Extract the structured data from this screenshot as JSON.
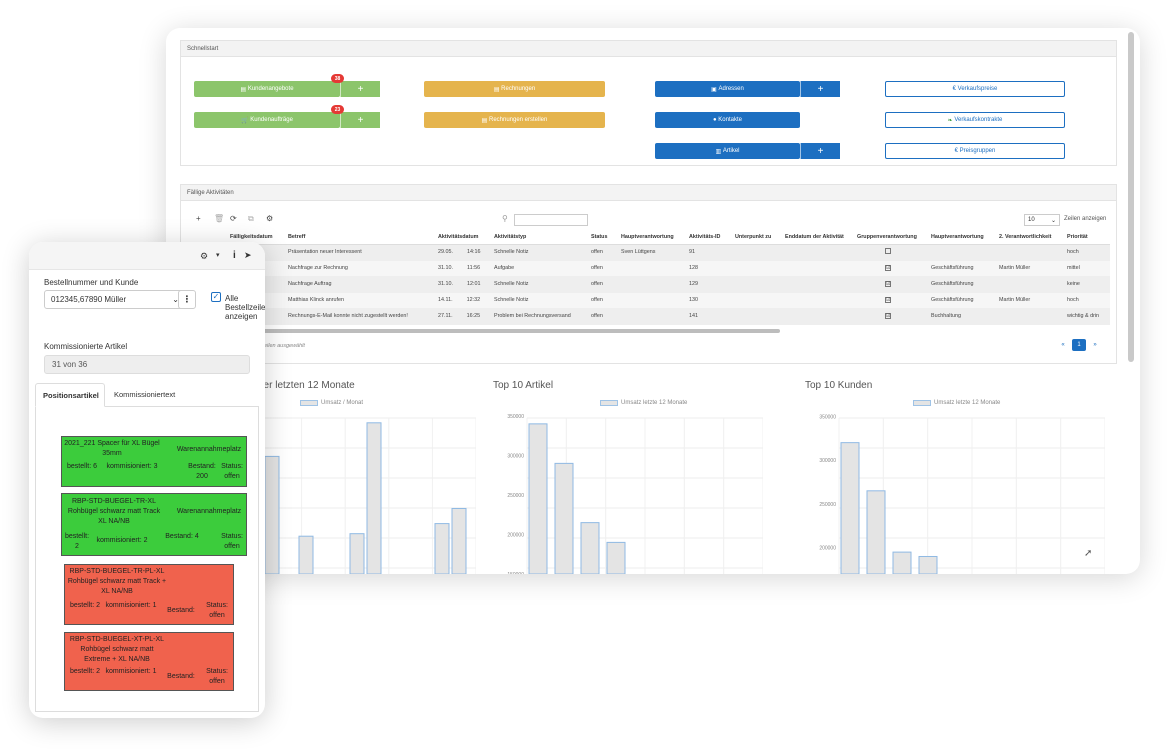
{
  "quick": {
    "title": "Schnellstart",
    "btn_kunden_angebote": "Kundenangebote",
    "badge_angebote": "38",
    "btn_kunden_auftraege": "Kundenaufträge",
    "badge_auftraege": "23",
    "btn_rechnungen": "Rechnungen",
    "btn_rechnungen_erstellen": "Rechnungen erstellen",
    "btn_adressen": "Adressen",
    "btn_kontakte": "Kontakte",
    "btn_artikel": "Artikel",
    "btn_verkaufspreise": "Verkaufspreise",
    "btn_verkaufskontrakte": "Verkaufskontrakte",
    "btn_preisgruppen": "Preisgruppen",
    "plus": "+"
  },
  "activities": {
    "title": "Fällige Aktivitäten",
    "rows_select": "10",
    "rows_label": "Zeilen anzeigen",
    "columns": [
      "Fälligkeitsdatum",
      "Betreff",
      "Aktivitätsdatum",
      "Aktivitätstyp",
      "Status",
      "Hauptverantwortung",
      "Aktivitäts-ID",
      "Unterpunkt zu",
      "Enddatum der Aktivität",
      "Gruppenverantwortung",
      "Hauptverantwortung",
      "2. Verantwortlichkeit",
      "Priorität"
    ],
    "rows": [
      {
        "time": "14:16",
        "subject": "Präsentation neuer Interessent",
        "date": "29.05.",
        "dtime": "14:16",
        "type": "Schnelle Notiz",
        "status": "offen",
        "owner": "Sven Lüttgens",
        "id": "91",
        "checked": "",
        "main": "",
        "second": "",
        "prio": "hoch"
      },
      {
        "time": "11:56",
        "subject": "Nachfrage zur Rechnung",
        "date": "31.10.",
        "dtime": "11:56",
        "type": "Aufgabe",
        "status": "offen",
        "owner": "",
        "id": "128",
        "checked": "☑",
        "main": "Geschäftsführung",
        "second": "Martin Müller",
        "prio": "mittel"
      },
      {
        "time": "12:01",
        "subject": "Nachfrage Auftrag",
        "date": "31.10.",
        "dtime": "12:01",
        "type": "Schnelle Notiz",
        "status": "offen",
        "owner": "",
        "id": "129",
        "checked": "☑",
        "main": "Geschäftsführung",
        "second": "",
        "prio": "keine"
      },
      {
        "time": "12:32",
        "subject": "Matthias Klinck anrufen",
        "date": "14.11.",
        "dtime": "12:32",
        "type": "Schnelle Notiz",
        "status": "offen",
        "owner": "",
        "id": "130",
        "checked": "☑",
        "main": "Geschäftsführung",
        "second": "Martin Müller",
        "prio": "hoch"
      },
      {
        "time": "16:25",
        "subject": "Rechnungs-E-Mail konnte nicht zugestellt werden!",
        "date": "27.11.",
        "dtime": "16:25",
        "type": "Problem bei Rechnungsversand",
        "status": "offen",
        "owner": "",
        "id": "141",
        "checked": "☑",
        "main": "Buchhaltung",
        "second": "",
        "prio": "wichtig & drin"
      }
    ],
    "sel_info": "0 Zeilen ausgewählt",
    "pager_prev": "«",
    "pager_page": "1",
    "pager_next": "»"
  },
  "charts": {
    "c1_title": "der letzten 12 Monate",
    "c1_legend": "Umsatz / Monat",
    "c2_title": "Top 10 Artikel",
    "c2_legend": "Umsatz letzte 12 Monate",
    "c3_title": "Top 10 Kunden",
    "c3_legend": "Umsatz letzte 12 Monate"
  },
  "chart_data": [
    {
      "type": "bar",
      "title": "der letzten 12 Monate",
      "legend": [
        "Umsatz / Monat"
      ],
      "values": [
        null,
        140,
        null,
        45,
        null,
        null,
        48,
        180,
        null,
        null,
        null,
        60,
        78
      ]
    },
    {
      "type": "bar",
      "title": "Top 10 Artikel",
      "legend": [
        "Umsatz letzte 12 Monate"
      ],
      "yticks": [
        "350000",
        "300000",
        "250000",
        "200000",
        "150000"
      ],
      "values": [
        340000,
        290000,
        215000,
        190000
      ]
    },
    {
      "type": "bar",
      "title": "Top 10 Kunden",
      "legend": [
        "Umsatz letzte 12 Monate"
      ],
      "yticks": [
        "350000",
        "300000",
        "250000",
        "200000"
      ],
      "values": [
        320000,
        265000,
        195000,
        190000
      ]
    }
  ],
  "mobile": {
    "order_label": "Bestellnummer und Kunde",
    "order_value": "012345,67890 Müller",
    "all_lines_label": "Alle Bestellzeilen anzeigen",
    "picked_label": "Kommissionierte Artikel",
    "picked_value": "31 von 36",
    "tab_positions": "Positionsartikel",
    "tab_text": "Kommissioniertext",
    "cards": [
      {
        "name": "2021_221 Spacer für XL Bügel 35mm",
        "place": "Warenannahmeplatz",
        "ordered": "bestellt: 6",
        "picked": "kommisioniert: 3",
        "stock": "Bestand: 200",
        "status": "Status: offen"
      },
      {
        "name": "RBP-STD-BUEGEL-TR-XL Rohbügel schwarz matt Track XL NA/NB",
        "place": "Warenannahmeplatz",
        "ordered": "bestellt: 2",
        "picked": "kommisioniert: 2",
        "stock": "Bestand: 4",
        "status": "Status: offen"
      },
      {
        "name": "RBP-STD-BUEGEL-TR-PL-XL Rohbügel schwarz matt Track + XL NA/NB",
        "place": "",
        "ordered": "bestellt: 2",
        "picked": "kommisioniert: 1",
        "stock": "Bestand:",
        "status": "Status: offen"
      },
      {
        "name": "RBP-STD-BUEGEL-XT-PL-XL Rohbügel schwarz matt Extreme + XL NA/NB",
        "place": "",
        "ordered": "bestellt: 2",
        "picked": "kommisioniert: 1",
        "stock": "Bestand:",
        "status": "Status: offen"
      }
    ]
  }
}
